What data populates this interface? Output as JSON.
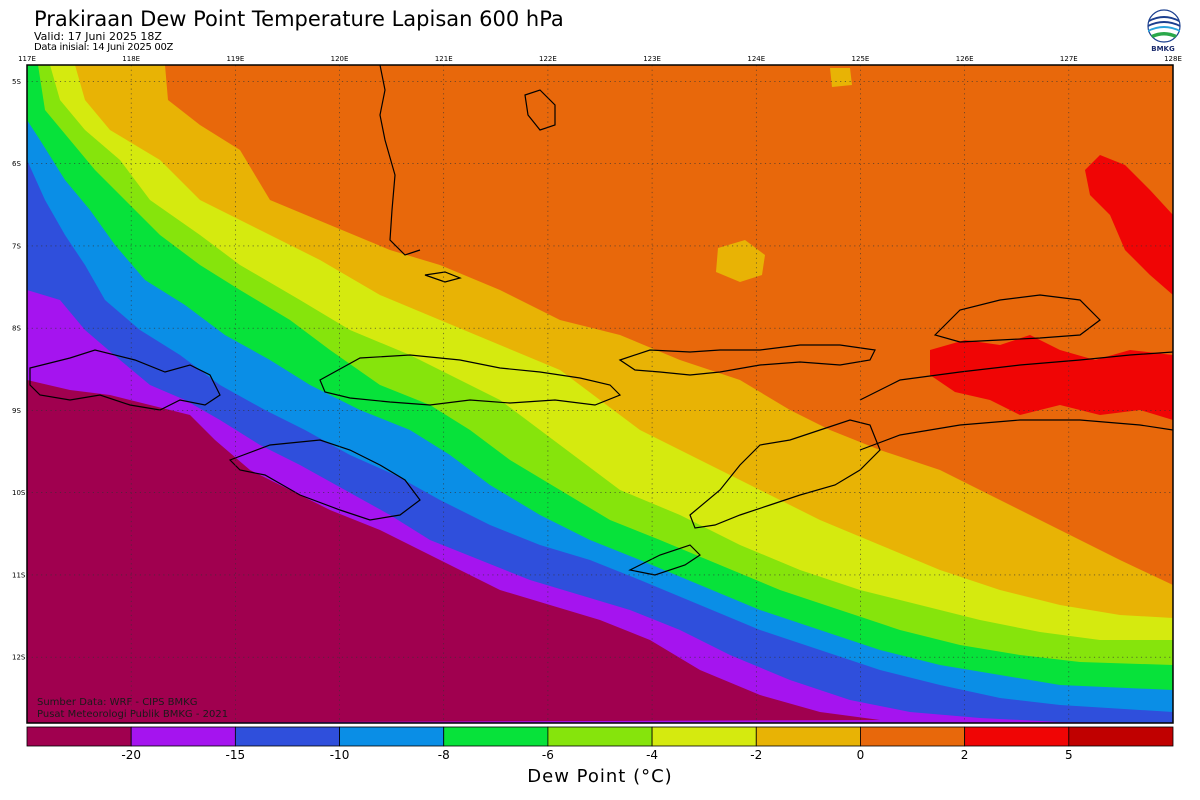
{
  "header": {
    "title": "Prakiraan Dew Point Temperature Lapisan 600 hPa",
    "valid": "Valid: 17 Juni 2025 18Z",
    "initial": "Data inisial: 14 Juni 2025 00Z",
    "logo_text": "BMKG"
  },
  "source": {
    "line1": "Sumber Data: WRF - CIPS BMKG",
    "line2": "Pusat Meteorologi Publik BMKG - 2021"
  },
  "map": {
    "longitudes": [
      "117E",
      "118E",
      "119E",
      "120E",
      "121E",
      "122E",
      "123E",
      "124E",
      "125E",
      "126E",
      "127E",
      "128E"
    ],
    "latitudes": [
      "5S",
      "6S",
      "7S",
      "8S",
      "9S",
      "10S",
      "11S",
      "12S"
    ]
  },
  "colorbar": {
    "title": "Dew Point (°C)",
    "tick_labels": [
      "-20",
      "-15",
      "-10",
      "-8",
      "-6",
      "-4",
      "-2",
      "0",
      "2",
      "5"
    ],
    "colors": [
      "#a0004f",
      "#a514ef",
      "#2f4fdc",
      "#0a8ee6",
      "#07e23a",
      "#86e40c",
      "#d5ea0f",
      "#e8b305",
      "#e8680b",
      "#f00505",
      "#c00000"
    ]
  },
  "chart_data": {
    "type": "heatmap",
    "title": "Prakiraan Dew Point Temperature Lapisan 600 hPa",
    "xlabel": "",
    "ylabel": "",
    "xlim": [
      117,
      128
    ],
    "ylim": [
      -12.8,
      -4.8
    ],
    "legend": "bottom",
    "colorbar_label": "Dew Point (°C)",
    "levels": [
      -20,
      -15,
      -10,
      -8,
      -6,
      -4,
      -2,
      0,
      2,
      5
    ],
    "pattern": "dew point increases from southwest (below -20) to northeast (above 2); values above 2 over Banda Sea east of 125E"
  }
}
